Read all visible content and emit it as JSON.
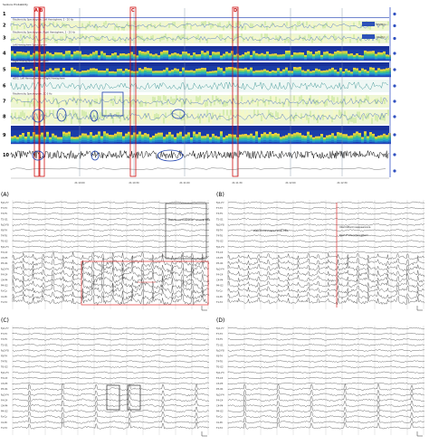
{
  "trend": {
    "header": "Seizure Probability",
    "rows": [
      {
        "num": "1",
        "title": "",
        "legend": ""
      },
      {
        "num": "2",
        "title": "Rhythmicity Spectrogram, Left Hemisphere, 2 - 20 Hz",
        "legend": "Rhythm"
      },
      {
        "num": "3",
        "title": "Rhythmicity Spectrogram, Right Hemisphere, 2 - 20 Hz",
        "legend": "Rhythm"
      },
      {
        "num": "4",
        "title": "Left Hemisphere Spectrogram",
        "legend": ""
      },
      {
        "num": "5",
        "title": "Right Hemisphere Spectrogram",
        "legend": ""
      },
      {
        "num": "6",
        "title": "aEEG, Left Hemisphere and Right Hemisphere",
        "legend": ""
      },
      {
        "num": "7",
        "title": "Rhythmicity Spectrogram, 2C-3 Hz",
        "legend": ""
      },
      {
        "num": "8",
        "title": "",
        "legend": ""
      },
      {
        "num": "9",
        "title": "",
        "legend": ""
      },
      {
        "num": "10",
        "title": "",
        "legend": ""
      }
    ],
    "markers": [
      "A B",
      "C",
      "D"
    ],
    "times": [
      "21:10:00",
      "21:10:30",
      "21:11:00",
      "21:11:30",
      "21:12:00",
      "21:12:30"
    ]
  },
  "panels": [
    {
      "label": "(A)",
      "annotations": [
        "Pseudo-normalization\" of scalp EEG",
        ""
      ]
    },
    {
      "label": "(B)",
      "annotations": [
        "Pseudo-normalized scalp EEG",
        "Intermittent reappearance of spike activity on scalp EEG",
        "Rest of interictal pattern",
        "activity"
      ]
    },
    {
      "label": "(C)",
      "annotations": []
    },
    {
      "label": "(D)",
      "annotations": []
    }
  ],
  "channels": [
    "Fp1-F7",
    "F7-T3",
    "T3-T5",
    "T5-O1",
    "Fp2-F8",
    "F8-T4",
    "T4-T6",
    "T6-O2",
    "Fp1-F3",
    "F3-C3",
    "C3-P3",
    "P3-O1",
    "Fp2-F4",
    "F4-C4",
    "C4-P4",
    "P4-O2",
    "Fz-Cz",
    "Cz-Pz",
    "T1-T2",
    "EKG"
  ],
  "colors": {
    "accent_red": "#e03030",
    "box_gray": "#555555",
    "trend_blue": "#1b3fae",
    "marker_red": "#d01010"
  }
}
